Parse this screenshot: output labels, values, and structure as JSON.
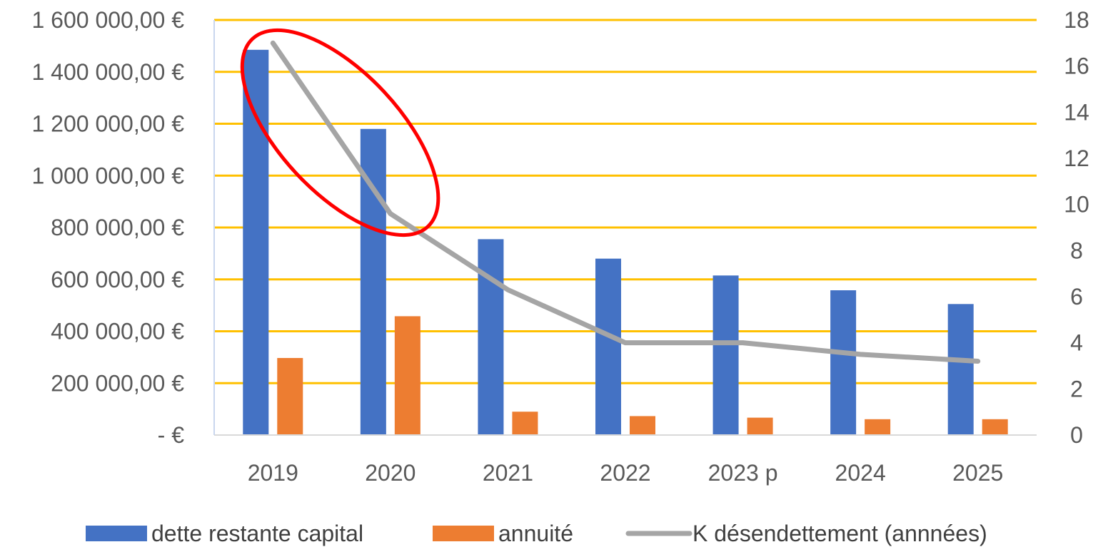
{
  "chart_data": {
    "type": "bar",
    "categories": [
      "2019",
      "2020",
      "2021",
      "2022",
      "2023 p",
      "2024",
      "2025"
    ],
    "series": [
      {
        "name": "dette restante capital",
        "kind": "bar",
        "axis": "left",
        "color": "#4472C4",
        "values": [
          1485000,
          1180000,
          755000,
          680000,
          615000,
          558000,
          505000
        ]
      },
      {
        "name": "annuité",
        "kind": "bar",
        "axis": "left",
        "color": "#ED7D31",
        "values": [
          297000,
          458000,
          90000,
          73000,
          67000,
          61000,
          61000
        ]
      },
      {
        "name": "K désendettement (annnées)",
        "kind": "line",
        "axis": "right",
        "color": "#A5A5A5",
        "values": [
          17.0,
          9.6,
          6.3,
          4.0,
          4.0,
          3.5,
          3.2
        ]
      }
    ],
    "left_axis": {
      "ylim": [
        0,
        1600000
      ],
      "tick_labels": [
        "-   €",
        "200 000,00 €",
        "400 000,00 €",
        "600 000,00 €",
        "800 000,00 €",
        "1 000 000,00 €",
        "1 200 000,00 €",
        "1 400 000,00 €",
        "1 600 000,00 €"
      ]
    },
    "right_axis": {
      "ylim": [
        0,
        18
      ],
      "tick_labels": [
        "0",
        "2",
        "4",
        "6",
        "8",
        "10",
        "12",
        "14",
        "16",
        "18"
      ]
    },
    "gridlines": {
      "on": true,
      "color": "#FFC000"
    },
    "legend": {
      "position": "bottom",
      "entries": [
        "dette restante capital",
        "annuité",
        "K désendettement (annnées)"
      ]
    },
    "annotation": {
      "shape": "ellipse",
      "color": "#FF0000",
      "highlights": [
        "2019",
        "2020"
      ]
    }
  }
}
